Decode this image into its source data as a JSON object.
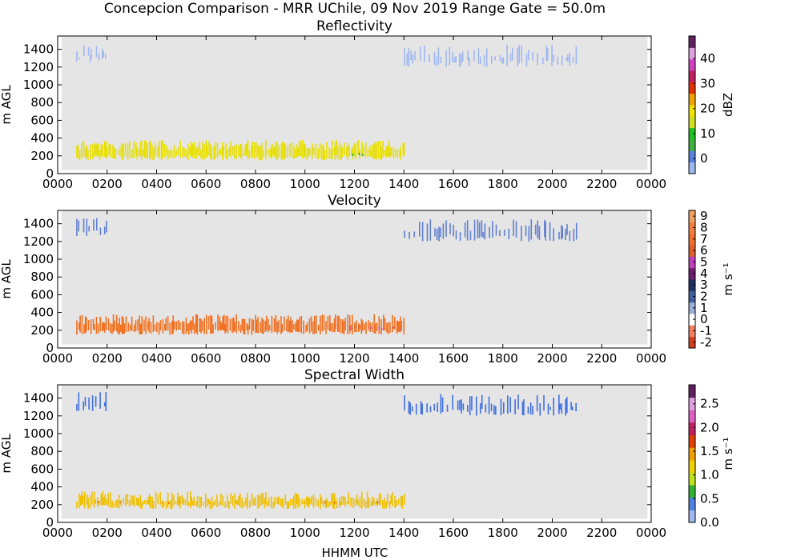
{
  "figure": {
    "title": "Concepcion Comparison - MRR UChile, 09 Nov 2019 Range Gate = 50.0m",
    "xlabel": "HHMM UTC"
  },
  "chart_data": [
    {
      "type": "heatmap",
      "title": "Reflectivity",
      "ylabel": "m AGL",
      "xlabel": "",
      "xlim": [
        0,
        2400
      ],
      "ylim": [
        0,
        1550
      ],
      "xticks": [
        "0000",
        "0200",
        "0400",
        "0600",
        "0800",
        "1000",
        "1200",
        "1400",
        "1600",
        "1800",
        "2000",
        "2200",
        "0000"
      ],
      "yticks": [
        0,
        200,
        400,
        600,
        800,
        1000,
        1200,
        1400
      ],
      "background": "#e5e5e5",
      "colorbar": {
        "label": "dBZ",
        "range": [
          -6,
          49
        ],
        "ticks": [
          "0",
          "10",
          "20",
          "30",
          "40"
        ],
        "tick_values": [
          0,
          10,
          20,
          30,
          40
        ],
        "colors": [
          "#a0b8f0",
          "#5a80e0",
          "#40b040",
          "#20c020",
          "#d0e020",
          "#f0e000",
          "#f0a000",
          "#e03000",
          "#c02060",
          "#d040c0",
          "#e0a0e0",
          "#602060"
        ]
      },
      "features": [
        {
          "from_hhmm": "0045",
          "to_hhmm": "1400",
          "y_bottom": 150,
          "y_top": 380,
          "color": "#e8e000"
        },
        {
          "from_hhmm": "1130",
          "to_hhmm": "1400",
          "y_bottom": 200,
          "y_top": 250,
          "color": "#30b030"
        },
        {
          "from_hhmm": "0045",
          "to_hhmm": "0200",
          "y_bottom": 1250,
          "y_top": 1450,
          "color": "#a0b8f0"
        },
        {
          "from_hhmm": "1400",
          "to_hhmm": "2100",
          "y_bottom": 1200,
          "y_top": 1450,
          "color": "#a0b8f0"
        }
      ]
    },
    {
      "type": "heatmap",
      "title": "Velocity",
      "ylabel": "m AGL",
      "xlabel": "",
      "xlim": [
        0,
        2400
      ],
      "ylim": [
        0,
        1550
      ],
      "xticks": [
        "0000",
        "0200",
        "0400",
        "0600",
        "0800",
        "1000",
        "1200",
        "1400",
        "1600",
        "1800",
        "2000",
        "2200",
        "0000"
      ],
      "yticks": [
        0,
        200,
        400,
        600,
        800,
        1000,
        1200,
        1400
      ],
      "background": "#e5e5e5",
      "colorbar": {
        "label": "m s⁻¹",
        "range": [
          -2.5,
          9.5
        ],
        "ticks": [
          "-2",
          "-1",
          "0",
          "1",
          "2",
          "3",
          "4",
          "5",
          "6",
          "7",
          "8",
          "9"
        ],
        "tick_values": [
          -2,
          -1,
          0,
          1,
          2,
          3,
          4,
          5,
          6,
          7,
          8,
          9
        ],
        "colors": [
          "#d04020",
          "#f08060",
          "#ffffff",
          "#9ab0d8",
          "#4060a0",
          "#203060",
          "#702070",
          "#c040c0",
          "#e06030",
          "#f07030",
          "#f08040",
          "#f0a060"
        ]
      },
      "features": [
        {
          "from_hhmm": "0045",
          "to_hhmm": "1400",
          "y_bottom": 150,
          "y_top": 380,
          "color": "#f07020"
        },
        {
          "from_hhmm": "1130",
          "to_hhmm": "1400",
          "y_bottom": 200,
          "y_top": 250,
          "color": "#c040c0"
        },
        {
          "from_hhmm": "0045",
          "to_hhmm": "0200",
          "y_bottom": 1250,
          "y_top": 1470,
          "color": "#6080d0"
        },
        {
          "from_hhmm": "1400",
          "to_hhmm": "2100",
          "y_bottom": 1200,
          "y_top": 1450,
          "color": "#6080d0"
        }
      ]
    },
    {
      "type": "heatmap",
      "title": "Spectral Width",
      "ylabel": "m AGL",
      "xlabel": "HHMM UTC",
      "xlim": [
        0,
        2400
      ],
      "ylim": [
        0,
        1550
      ],
      "xticks": [
        "0000",
        "0200",
        "0400",
        "0600",
        "0800",
        "1000",
        "1200",
        "1400",
        "1600",
        "1800",
        "2000",
        "2200",
        "0000"
      ],
      "yticks": [
        0,
        200,
        400,
        600,
        800,
        1000,
        1200,
        1400
      ],
      "background": "#e5e5e5",
      "colorbar": {
        "label": "m s⁻¹",
        "range": [
          0,
          2.9
        ],
        "ticks": [
          "0.0",
          "0.5",
          "1.0",
          "1.5",
          "2.0",
          "2.5"
        ],
        "tick_values": [
          0,
          0.5,
          1.0,
          1.5,
          2.0,
          2.5
        ],
        "colors": [
          "#a0b8f0",
          "#5080e0",
          "#30b030",
          "#c0e020",
          "#f0d000",
          "#f0a000",
          "#e04000",
          "#c02060",
          "#e060c0",
          "#e0a0e0",
          "#602060"
        ]
      },
      "features": [
        {
          "from_hhmm": "0045",
          "to_hhmm": "1400",
          "y_bottom": 150,
          "y_top": 350,
          "color": "#f0c000"
        },
        {
          "from_hhmm": "0045",
          "to_hhmm": "1400",
          "y_bottom": 210,
          "y_top": 240,
          "color": "#e05000"
        },
        {
          "from_hhmm": "0045",
          "to_hhmm": "0200",
          "y_bottom": 1250,
          "y_top": 1470,
          "color": "#4070e0"
        },
        {
          "from_hhmm": "1400",
          "to_hhmm": "2100",
          "y_bottom": 1200,
          "y_top": 1450,
          "color": "#4070e0"
        }
      ]
    }
  ]
}
